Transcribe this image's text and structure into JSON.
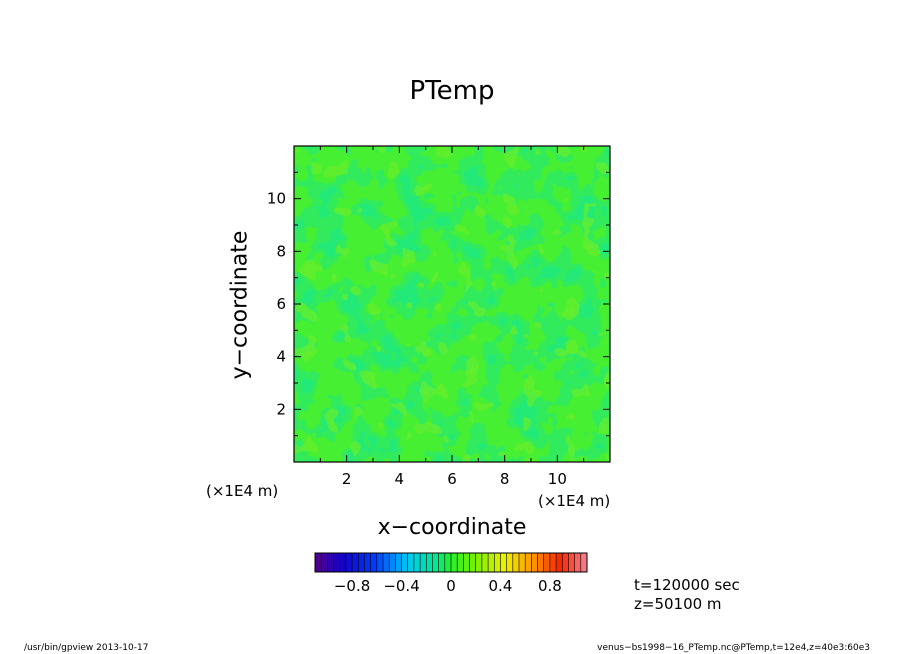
{
  "chart_data": {
    "type": "heatmap",
    "title": "PTemp",
    "xlabel": "x−coordinate",
    "ylabel": "y−coordinate",
    "x_unit": "(×1E4 m)",
    "y_unit": "(×1E4 m)",
    "xlim": [
      0,
      12
    ],
    "ylim": [
      0,
      12
    ],
    "xticks": [
      2,
      4,
      6,
      8,
      10
    ],
    "yticks": [
      2,
      4,
      6,
      8,
      10
    ],
    "xtick_labels": [
      "2",
      "4",
      "6",
      "8",
      "10"
    ],
    "ytick_labels": [
      "2",
      "4",
      "6",
      "8",
      "10"
    ],
    "field_description": "nearly uniform field near 0 with small fluctuations",
    "value_range_shown": [
      -0.2,
      0.2
    ],
    "colorbar": {
      "vmin": -1.1,
      "vmax": 1.1,
      "step": 0.05,
      "ticks": [
        -0.8,
        -0.4,
        0,
        0.4,
        0.8
      ],
      "tick_labels": [
        "−0.8",
        "−0.4",
        "0",
        "0.4",
        "0.8"
      ]
    }
  },
  "annotations": {
    "time": "t=120000 sec",
    "height": "z=50100 m"
  },
  "footer": {
    "left": "/usr/bin/gpview   2013-10-17",
    "right": "venus−bs1998−16_PTemp.nc@PTemp,t=12e4,z=40e3:60e3"
  }
}
